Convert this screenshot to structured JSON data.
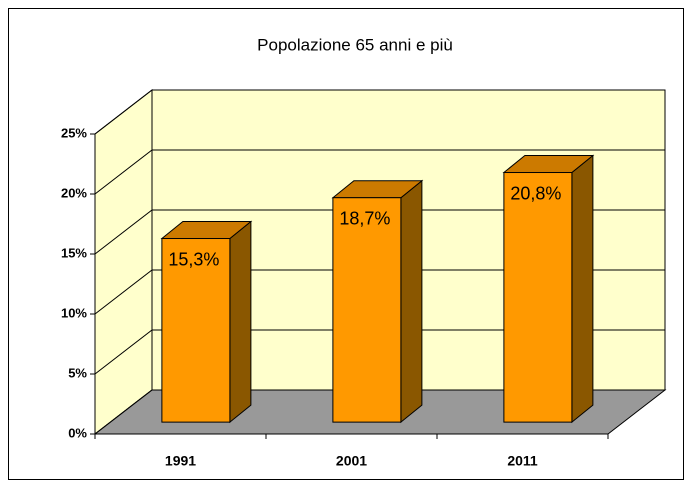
{
  "chart_data": {
    "type": "bar3d",
    "title": "Popolazione 65 anni e più",
    "categories": [
      "1991",
      "2001",
      "2011"
    ],
    "values": [
      15.3,
      18.7,
      20.8
    ],
    "value_labels": [
      "15,3%",
      "18,7%",
      "20,8%"
    ],
    "color": "#ff9900",
    "ylim": [
      0,
      25
    ],
    "yticks": [
      {
        "value": 0,
        "label": "0%"
      },
      {
        "value": 5,
        "label": "5%"
      },
      {
        "value": 10,
        "label": "10%"
      },
      {
        "value": 15,
        "label": "15%"
      },
      {
        "value": 20,
        "label": "20%"
      },
      {
        "value": 25,
        "label": "25%"
      }
    ],
    "grid": true
  }
}
